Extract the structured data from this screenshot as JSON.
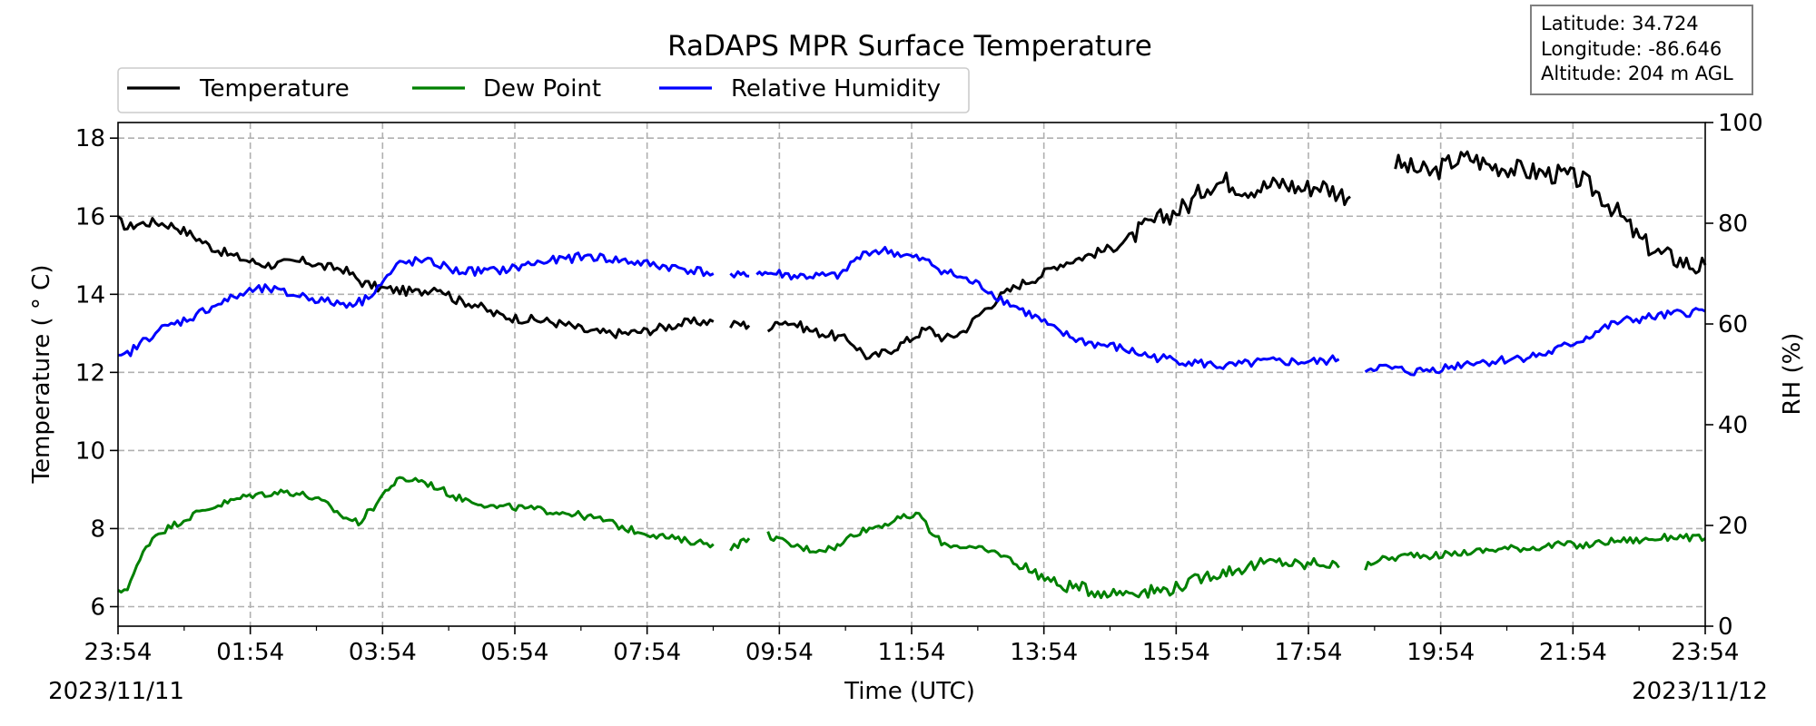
{
  "chart_data": {
    "type": "line",
    "title": "RaDAPS MPR Surface Temperature",
    "xlabel": "Time (UTC)",
    "ylabel": "Temperature ( $^\\circ$C)",
    "ylabel_display": "Temperature ( ° C)",
    "ylabel_right": "RH (%)",
    "x_ticks": [
      "23:54",
      "01:54",
      "03:54",
      "05:54",
      "07:54",
      "09:54",
      "11:54",
      "13:54",
      "15:54",
      "17:54",
      "19:54",
      "21:54",
      "23:54"
    ],
    "x_range_hours": [
      0,
      24
    ],
    "x_tick_interval_hours": 2,
    "start_date": "2023/11/11",
    "end_date": "2023/11/12",
    "ylim": [
      5.5,
      18.4
    ],
    "y_ticks": [
      6,
      8,
      10,
      12,
      14,
      16,
      18
    ],
    "ylim_right": [
      0,
      100
    ],
    "y_ticks_right": [
      0,
      20,
      40,
      60,
      80,
      100
    ],
    "grid": true,
    "legend": [
      "Temperature",
      "Dew Point",
      "Relative Humidity"
    ],
    "legend_position": "top-left",
    "series": [
      {
        "name": "Temperature",
        "axis": "left",
        "color": "#000000",
        "points": [
          [
            0.0,
            15.9
          ],
          [
            0.25,
            15.7
          ],
          [
            0.5,
            15.8
          ],
          [
            1.0,
            15.85
          ],
          [
            1.5,
            15.75
          ],
          [
            2.0,
            15.5
          ],
          [
            2.5,
            15.2
          ],
          [
            3.0,
            15.0
          ],
          [
            3.5,
            14.85
          ],
          [
            4.0,
            14.75
          ],
          [
            4.5,
            14.8
          ],
          [
            5.0,
            14.85
          ],
          [
            5.5,
            14.7
          ],
          [
            6.0,
            14.65
          ],
          [
            6.5,
            14.3
          ],
          [
            7.0,
            14.15
          ],
          [
            7.5,
            14.1
          ],
          [
            8.0,
            14.05
          ],
          [
            8.5,
            14.2
          ],
          [
            8.8,
            14.0
          ],
          [
            9.0,
            13.85
          ],
          [
            9.5,
            13.75
          ],
          [
            10.0,
            13.5
          ],
          [
            10.5,
            13.4
          ],
          [
            11.0,
            13.35
          ],
          [
            11.5,
            13.3
          ],
          [
            12.0,
            13.2
          ],
          [
            12.5,
            13.05
          ],
          [
            13.0,
            13.0
          ],
          [
            13.5,
            13.0
          ],
          [
            14.0,
            13.05
          ],
          [
            14.5,
            13.15
          ],
          [
            15.0,
            13.25
          ],
          [
            15.5,
            13.3
          ],
          [
            15.85,
            13.3
          ],
          null,
          [
            16.3,
            13.2
          ],
          [
            16.5,
            13.25
          ],
          [
            16.8,
            13.2
          ],
          null,
          [
            17.3,
            13.1
          ],
          [
            17.5,
            13.2
          ],
          [
            17.6,
            13.35
          ],
          [
            18.0,
            13.25
          ],
          [
            18.5,
            13.05
          ],
          [
            19.0,
            12.95
          ],
          [
            19.5,
            12.8
          ],
          [
            20.0,
            12.35
          ],
          [
            20.5,
            12.55
          ],
          [
            21.0,
            12.8
          ],
          [
            21.4,
            13.05
          ],
          [
            21.6,
            13.1
          ],
          [
            22.0,
            12.85
          ],
          [
            22.5,
            13.05
          ],
          [
            23.0,
            13.55
          ],
          [
            23.5,
            13.95
          ],
          [
            24.0,
            14.25
          ],
          [
            24.5,
            14.45
          ],
          [
            25.0,
            14.75
          ],
          [
            25.5,
            14.9
          ],
          [
            26.0,
            15.05
          ],
          [
            26.5,
            15.2
          ],
          [
            27.0,
            15.5
          ],
          [
            27.5,
            15.8
          ],
          [
            28.0,
            16.05
          ],
          [
            28.5,
            16.3
          ],
          [
            29.0,
            16.8
          ],
          [
            29.5,
            16.9
          ],
          [
            30.0,
            16.7
          ],
          [
            30.5,
            16.75
          ],
          [
            31.0,
            16.85
          ],
          [
            31.5,
            16.7
          ],
          [
            32.0,
            16.8
          ],
          [
            32.5,
            16.6
          ],
          [
            32.8,
            16.5
          ],
          null,
          [
            34.0,
            17.35
          ],
          [
            34.5,
            17.2
          ],
          [
            35.0,
            17.1
          ],
          [
            35.5,
            17.4
          ],
          [
            36.0,
            17.5
          ],
          [
            36.5,
            17.3
          ],
          [
            37.0,
            17.25
          ],
          [
            37.5,
            17.15
          ],
          [
            38.0,
            17.1
          ],
          [
            38.5,
            17.05
          ],
          [
            39.0,
            16.9
          ],
          [
            39.5,
            16.5
          ],
          [
            40.0,
            16.0
          ],
          [
            40.5,
            15.4
          ],
          [
            41.0,
            15.05
          ],
          [
            41.5,
            14.9
          ],
          [
            42.0,
            14.7
          ],
          [
            42.25,
            14.75
          ]
        ]
      },
      {
        "name": "Dew Point",
        "axis": "left",
        "color": "#008000",
        "points": [
          [
            0.0,
            6.35
          ],
          [
            0.25,
            6.5
          ],
          [
            0.5,
            7.0
          ],
          [
            0.75,
            7.55
          ],
          [
            1.0,
            7.85
          ],
          [
            1.5,
            8.1
          ],
          [
            2.0,
            8.35
          ],
          [
            2.5,
            8.55
          ],
          [
            3.0,
            8.7
          ],
          [
            3.5,
            8.85
          ],
          [
            4.0,
            8.9
          ],
          [
            4.5,
            8.95
          ],
          [
            5.0,
            8.85
          ],
          [
            5.5,
            8.65
          ],
          [
            6.0,
            8.3
          ],
          [
            6.4,
            8.15
          ],
          [
            6.8,
            8.55
          ],
          [
            7.2,
            9.05
          ],
          [
            7.5,
            9.25
          ],
          [
            8.0,
            9.25
          ],
          [
            8.5,
            9.05
          ],
          [
            9.0,
            8.8
          ],
          [
            9.5,
            8.7
          ],
          [
            10.0,
            8.55
          ],
          [
            10.5,
            8.55
          ],
          [
            11.0,
            8.5
          ],
          [
            11.5,
            8.45
          ],
          [
            12.0,
            8.4
          ],
          [
            12.5,
            8.3
          ],
          [
            13.0,
            8.2
          ],
          [
            13.5,
            8.0
          ],
          [
            14.0,
            7.9
          ],
          [
            14.5,
            7.8
          ],
          [
            15.0,
            7.7
          ],
          [
            15.5,
            7.65
          ],
          [
            15.85,
            7.6
          ],
          null,
          [
            16.3,
            7.5
          ],
          [
            16.5,
            7.6
          ],
          [
            16.8,
            7.75
          ],
          null,
          [
            17.3,
            7.85
          ],
          [
            17.6,
            7.7
          ],
          [
            18.0,
            7.55
          ],
          [
            18.5,
            7.45
          ],
          [
            19.0,
            7.5
          ],
          [
            19.3,
            7.6
          ],
          [
            19.5,
            7.85
          ],
          [
            20.0,
            8.0
          ],
          [
            20.5,
            8.15
          ],
          [
            21.0,
            8.3
          ],
          [
            21.4,
            8.35
          ],
          [
            21.6,
            7.9
          ],
          [
            22.0,
            7.6
          ],
          [
            22.5,
            7.55
          ],
          [
            23.0,
            7.45
          ],
          [
            23.5,
            7.35
          ],
          [
            24.0,
            7.05
          ],
          [
            24.5,
            6.85
          ],
          [
            25.0,
            6.55
          ],
          [
            25.5,
            6.5
          ],
          [
            26.0,
            6.4
          ],
          [
            26.5,
            6.35
          ],
          [
            27.0,
            6.4
          ],
          [
            27.5,
            6.4
          ],
          [
            28.0,
            6.45
          ],
          [
            28.5,
            6.6
          ],
          [
            29.0,
            6.8
          ],
          [
            29.5,
            6.9
          ],
          [
            30.0,
            7.0
          ],
          [
            30.5,
            7.1
          ],
          [
            31.0,
            7.15
          ],
          [
            31.5,
            7.05
          ],
          [
            32.0,
            7.15
          ],
          [
            32.5,
            7.0
          ],
          null,
          [
            33.2,
            7.0
          ],
          [
            33.5,
            7.2
          ],
          [
            34.0,
            7.25
          ],
          [
            34.5,
            7.35
          ],
          [
            35.0,
            7.3
          ],
          [
            35.5,
            7.35
          ],
          [
            36.0,
            7.4
          ],
          [
            36.5,
            7.45
          ],
          [
            37.0,
            7.5
          ],
          [
            37.5,
            7.5
          ],
          [
            38.0,
            7.55
          ],
          [
            38.5,
            7.6
          ],
          [
            39.0,
            7.55
          ],
          [
            39.5,
            7.65
          ],
          [
            40.0,
            7.7
          ],
          [
            40.5,
            7.7
          ],
          [
            41.0,
            7.75
          ],
          [
            41.5,
            7.8
          ],
          [
            42.0,
            7.75
          ],
          [
            42.25,
            7.75
          ]
        ]
      },
      {
        "name": "Relative Humidity",
        "axis": "right",
        "color": "#0000ff",
        "points": [
          [
            0.0,
            53.0
          ],
          [
            0.25,
            54.0
          ],
          [
            0.5,
            55.5
          ],
          [
            1.0,
            58.5
          ],
          [
            1.5,
            60.0
          ],
          [
            2.0,
            61.5
          ],
          [
            2.5,
            63.5
          ],
          [
            3.0,
            65.0
          ],
          [
            3.5,
            66.5
          ],
          [
            4.0,
            67.0
          ],
          [
            4.5,
            66.0
          ],
          [
            5.0,
            65.5
          ],
          [
            5.5,
            64.5
          ],
          [
            6.0,
            64.0
          ],
          [
            6.5,
            64.5
          ],
          [
            7.0,
            68.0
          ],
          [
            7.5,
            72.0
          ],
          [
            8.0,
            72.5
          ],
          [
            8.5,
            72.0
          ],
          [
            9.0,
            70.5
          ],
          [
            9.5,
            70.5
          ],
          [
            10.0,
            70.5
          ],
          [
            10.5,
            71.0
          ],
          [
            11.0,
            72.0
          ],
          [
            11.5,
            72.5
          ],
          [
            12.0,
            73.0
          ],
          [
            12.5,
            73.5
          ],
          [
            13.0,
            73.0
          ],
          [
            13.5,
            72.5
          ],
          [
            14.0,
            72.0
          ],
          [
            14.5,
            71.5
          ],
          [
            15.0,
            71.0
          ],
          [
            15.5,
            70.5
          ],
          [
            15.85,
            70.0
          ],
          null,
          [
            16.3,
            69.5
          ],
          [
            16.5,
            69.5
          ],
          [
            16.8,
            69.5
          ],
          null,
          [
            17.0,
            70.5
          ],
          [
            17.3,
            70.0
          ],
          [
            17.6,
            70.0
          ],
          [
            18.0,
            69.5
          ],
          [
            18.5,
            69.5
          ],
          [
            19.0,
            69.5
          ],
          [
            19.3,
            69.8
          ],
          [
            19.5,
            72.0
          ],
          [
            20.0,
            74.5
          ],
          [
            20.5,
            74.5
          ],
          [
            21.0,
            73.5
          ],
          [
            21.5,
            72.5
          ],
          [
            22.0,
            70.5
          ],
          [
            22.5,
            69.0
          ],
          [
            23.0,
            67.5
          ],
          [
            23.5,
            65.0
          ],
          [
            24.0,
            63.0
          ],
          [
            24.5,
            61.0
          ],
          [
            25.0,
            58.5
          ],
          [
            25.5,
            57.0
          ],
          [
            26.0,
            56.0
          ],
          [
            26.5,
            55.5
          ],
          [
            27.0,
            54.5
          ],
          [
            27.5,
            53.5
          ],
          [
            28.0,
            53.0
          ],
          [
            28.5,
            52.5
          ],
          [
            29.0,
            52.0
          ],
          [
            29.5,
            51.5
          ],
          [
            30.0,
            52.0
          ],
          [
            30.5,
            52.5
          ],
          [
            31.0,
            52.5
          ],
          [
            31.5,
            52.5
          ],
          [
            32.0,
            52.5
          ],
          [
            32.5,
            53.0
          ],
          null,
          [
            33.2,
            51.0
          ],
          [
            33.5,
            51.5
          ],
          [
            34.0,
            51.0
          ],
          [
            34.5,
            50.5
          ],
          [
            35.0,
            51.0
          ],
          [
            35.5,
            51.5
          ],
          [
            36.0,
            52.5
          ],
          [
            36.5,
            52.5
          ],
          [
            37.0,
            53.0
          ],
          [
            37.5,
            53.5
          ],
          [
            38.0,
            54.0
          ],
          [
            38.5,
            55.5
          ],
          [
            39.0,
            57.0
          ],
          [
            39.5,
            59.0
          ],
          [
            40.0,
            60.5
          ],
          [
            40.5,
            61.0
          ],
          [
            41.0,
            61.5
          ],
          [
            41.5,
            62.0
          ],
          [
            42.0,
            62.5
          ],
          [
            42.25,
            62.5
          ]
        ]
      }
    ]
  },
  "info_box": {
    "latitude": "Latitude: 34.724",
    "longitude": "Longitude: -86.646",
    "altitude": "Altitude: 204 m AGL"
  }
}
